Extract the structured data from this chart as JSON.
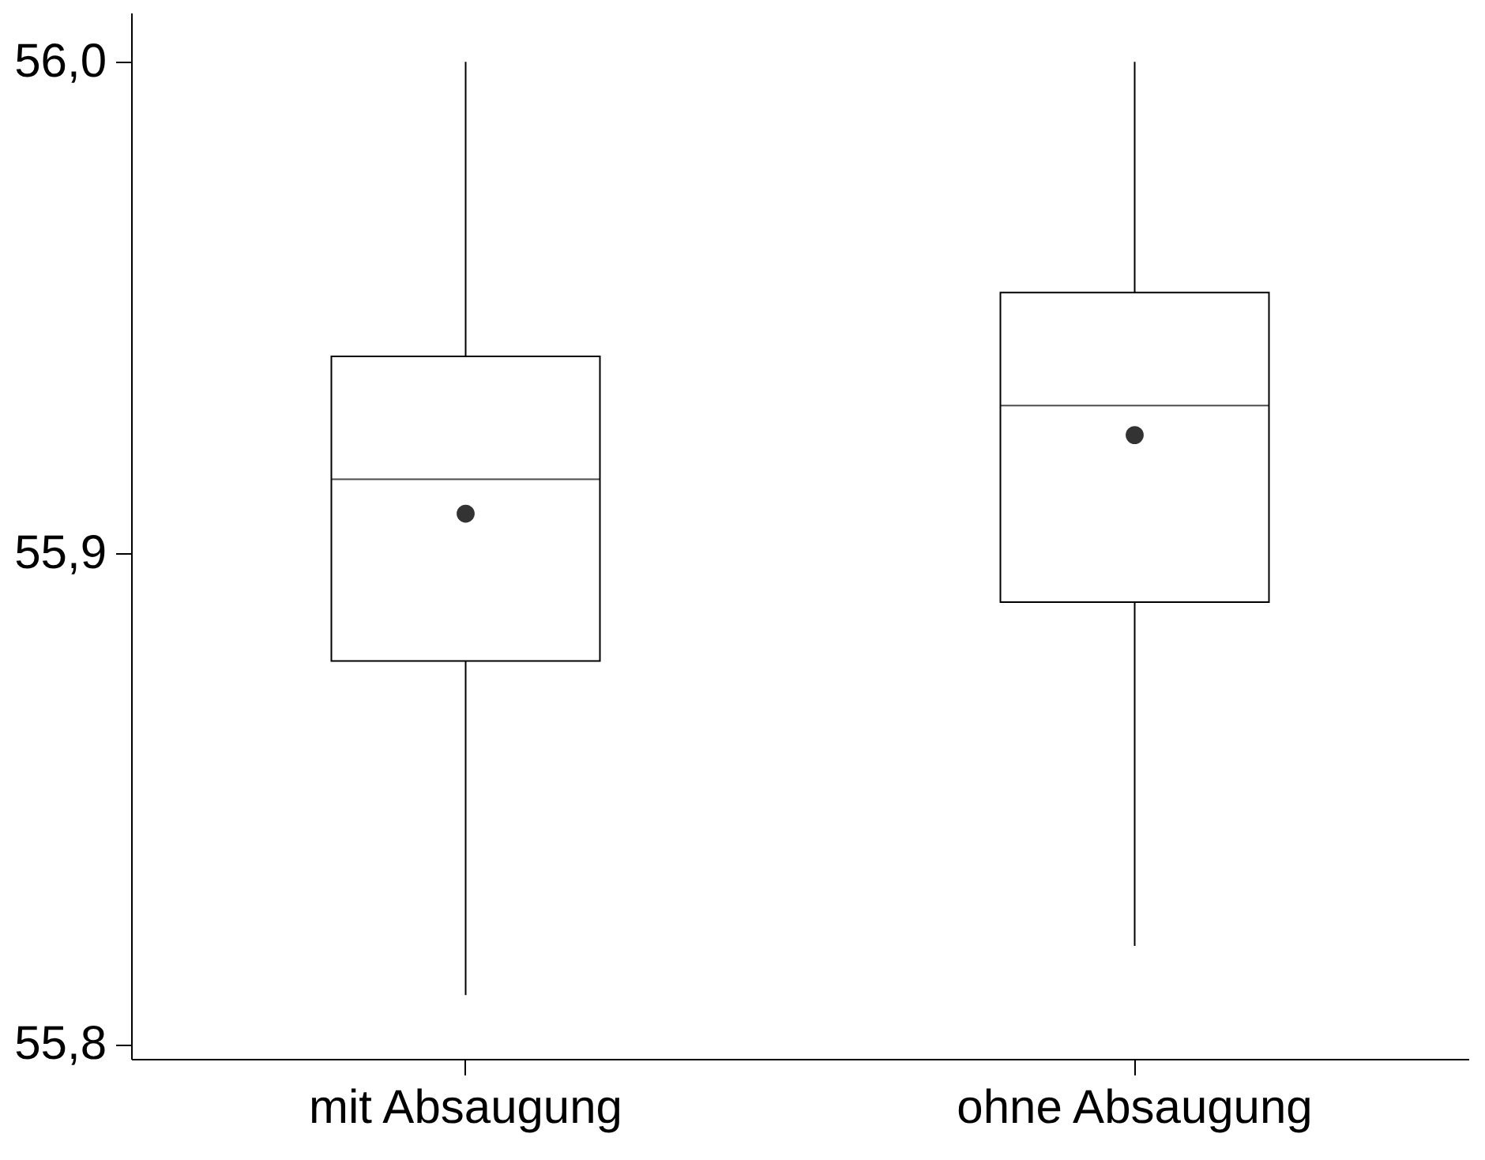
{
  "chart_data": {
    "type": "box",
    "categories": [
      "mit Absaugung",
      "ohne Absaugung"
    ],
    "boxes": [
      {
        "low": 55.81,
        "q1": 55.878,
        "median": 55.915,
        "q3": 55.94,
        "high": 56.0,
        "mean": 55.908
      },
      {
        "low": 55.82,
        "q1": 55.89,
        "median": 55.93,
        "q3": 55.953,
        "high": 56.0,
        "mean": 55.924
      }
    ],
    "ylim": [
      55.797,
      56.01
    ],
    "yticks": [
      {
        "value": 55.8,
        "label": "55,8"
      },
      {
        "value": 55.9,
        "label": "55,9"
      },
      {
        "value": 56.0,
        "label": "56,0"
      }
    ],
    "marker": "circle"
  }
}
